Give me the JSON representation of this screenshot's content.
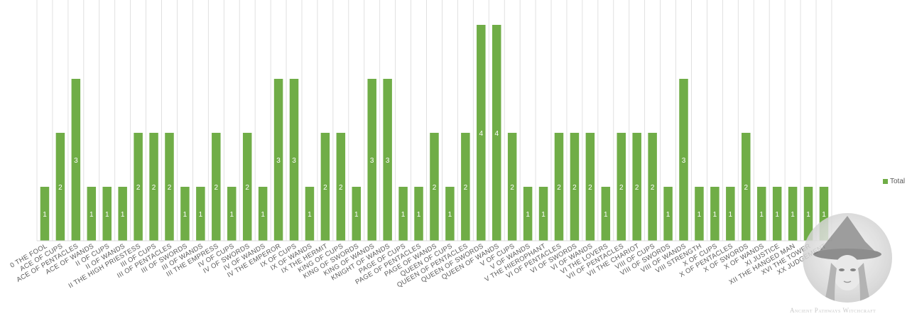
{
  "chart_data": {
    "type": "bar",
    "categories": [
      "0 THE FOOL",
      "ACE OF CUPS",
      "ACE OF PENTACLES",
      "ACE OF WANDS",
      "II OF CUPS",
      "II OF WANDS",
      "II THE HIGH PRIESTESS",
      "III OF CUPS",
      "III OF PENTACLES",
      "III OF SWORDS",
      "III OF WANDS",
      "III THE EMPRESS",
      "IV OF CUPS",
      "IV OF SWORDS",
      "IV OF WANDS",
      "IV THE EMPEROR",
      "IX OF CUPS",
      "IX OF WANDS",
      "IX THE HERMIT",
      "KING OF CUPS",
      "KING OF SWORDS",
      "KING OF WANDS",
      "KNIGHT OF WANDS",
      "PAGE OF CUPS",
      "PAGE OF PENTACLES",
      "PAGE OF WANDS",
      "QUEEN OF CUPS",
      "QUEEN OF PENTACLES",
      "QUEEN OF SWORDS",
      "QUEEN OF WANDS",
      "V OF CUPS",
      "V OF WANDS",
      "V THE HIEROPHANT",
      "VI OF PENTACLES",
      "VI OF SWORDS",
      "VI OF WANDS",
      "VI THE LOVERS",
      "VII OF PENTACLES",
      "VII THE CHARIOT",
      "VIII OF CUPS",
      "VIII OF SWORDS",
      "VIII OF WANDS",
      "VIII STRENGTH",
      "X OF CUPS",
      "X OF PENTACLES",
      "X OF SWORDS",
      "X OF WANDS",
      "XI JUSTICE",
      "XII THE HANGED MAN",
      "XVI THE TOWER",
      "XX JUDGEMENT"
    ],
    "series": [
      {
        "name": "Total",
        "values": [
          1,
          2,
          3,
          1,
          1,
          1,
          2,
          2,
          2,
          1,
          1,
          2,
          1,
          2,
          1,
          3,
          3,
          1,
          2,
          2,
          1,
          3,
          3,
          1,
          1,
          2,
          1,
          2,
          4,
          4,
          2,
          1,
          1,
          2,
          2,
          2,
          1,
          2,
          2,
          2,
          1,
          3,
          1,
          1,
          1,
          2,
          1,
          1,
          1,
          1,
          1
        ]
      }
    ],
    "title": "",
    "xlabel": "",
    "ylabel": "",
    "ylim": [
      0,
      4
    ],
    "grid": "vertical",
    "legend_position": "right",
    "bar_color": "#70ad47",
    "grid_color": "#d9d9d9",
    "label_color": "#ffffff",
    "tick_color": "#595959"
  },
  "legend": {
    "label": "Total"
  },
  "watermark": {
    "text": "Ancient Pathways Witchcraft"
  }
}
